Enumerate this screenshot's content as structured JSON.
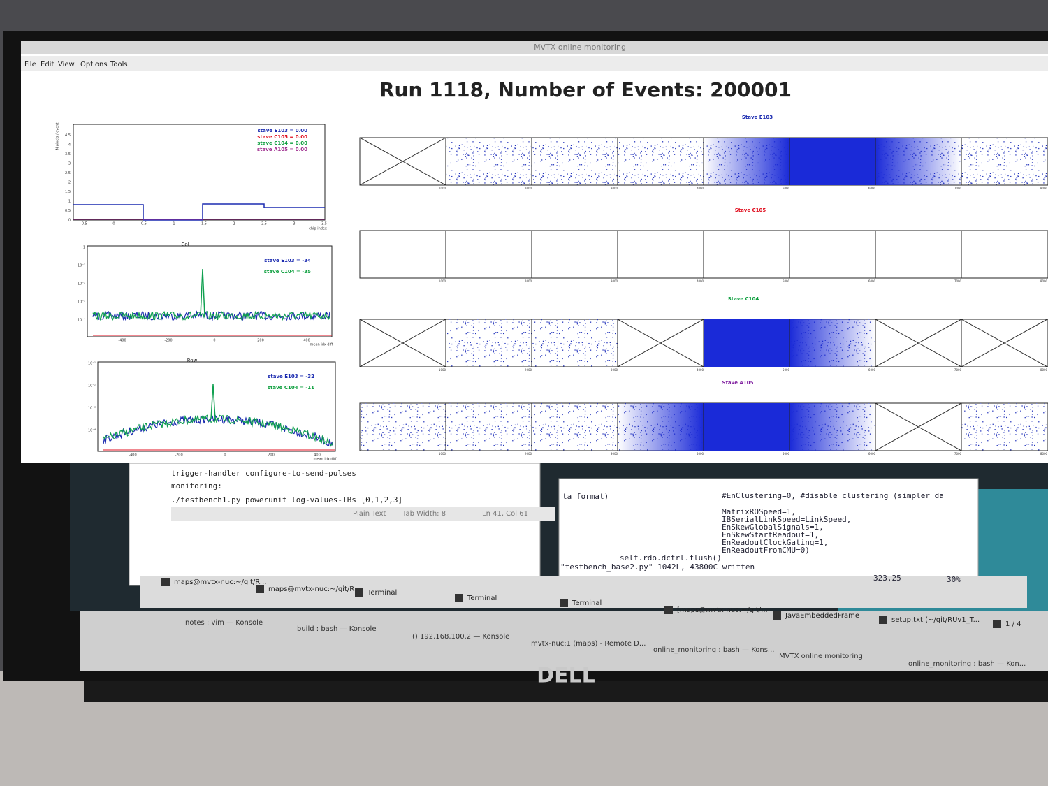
{
  "window": {
    "title": "MVTX online monitoring",
    "menu": [
      "File",
      "Edit",
      "View",
      "Options",
      "Tools"
    ]
  },
  "header": {
    "title": "Run 1118, Number of Events: 200001"
  },
  "plot1": {
    "y_label": "N pixels / event",
    "x_label": "chip index",
    "xticks": [
      "-0.5",
      "0",
      "0.5",
      "1",
      "1.5",
      "2",
      "2.5",
      "3",
      "3.5"
    ],
    "yticks": [
      "0",
      "0.5",
      "1",
      "1.5",
      "2",
      "2.5",
      "3",
      "3.5",
      "4",
      "4.5"
    ],
    "legend": [
      "stave E103 = 0.00",
      "stave C105 = 0.00",
      "stave C104 = 0.00",
      "stave A105 = 0.00"
    ]
  },
  "plot2": {
    "title": "Col",
    "x_label": "mean idx diff",
    "xticks": [
      "-400",
      "-200",
      "0",
      "200",
      "400"
    ],
    "yticks": [
      "1",
      "10⁻¹",
      "10⁻²",
      "10⁻³",
      "10⁻⁴"
    ],
    "legend": [
      "stave E103 = -34",
      "stave C104 = -35"
    ]
  },
  "plot3": {
    "title": "Row",
    "x_label": "mean idx diff",
    "xticks": [
      "-400",
      "-200",
      "0",
      "200",
      "400"
    ],
    "yticks": [
      "10⁻¹",
      "10⁻²",
      "10⁻³",
      "10⁻⁴"
    ],
    "legend": [
      "stave E103 = -32",
      "stave C104 = -11"
    ]
  },
  "staves": [
    {
      "title": "Stave E103"
    },
    {
      "title": "Stave C105"
    },
    {
      "title": "Stave C104"
    },
    {
      "title": "Stave A105"
    }
  ],
  "stave_xticks": [
    "1000",
    "2000",
    "3000",
    "4000",
    "5000",
    "6000",
    "7000",
    "8000"
  ],
  "editor": {
    "lines": [
      "trigger-handler configure-to-send-pulses",
      "monitoring:",
      "./testbench1.py powerunit log-values-IBs [0,1,2,3]"
    ],
    "status": [
      "Plain Text",
      "Tab Width: 8",
      "Ln 41, Col 61"
    ]
  },
  "vim": {
    "fragment": "ta format)",
    "lines": [
      "#EnClustering=0, #disable clustering (simpler da",
      "MatrixROSpeed=1,",
      "IBSerialLinkSpeed=LinkSpeed,",
      "EnSkewGlobalSignals=1,",
      "EnSkewStartReadout=1,",
      "EnReadoutClockGating=1,",
      "EnReadoutFromCMU=0)",
      "self.rdo.dctrl.flush()"
    ],
    "message": "\"testbench_base2.py\" 1042L, 43800C written",
    "position": "323,25",
    "percent": "30%"
  },
  "inner_taskbar": [
    "maps@mvtx-nuc:~/git/R...",
    "maps@mvtx-nuc:~/git/R...",
    "Terminal",
    "Terminal",
    "Terminal",
    "[maps@mvtx-nuc:~/git/...",
    "JavaEmbeddedFrame",
    "setup.txt (~/git/RUv1_T...",
    "1 / 4"
  ],
  "outer_taskbar": [
    "notes : vim — Konsole",
    "build : bash — Konsole",
    "() 192.168.100.2 — Konsole",
    "mvtx-nuc:1 (maps) - Remote D...",
    "online_monitoring : bash — Kons...",
    "MVTX online monitoring",
    "online_monitoring : bash — Kon..."
  ],
  "brand": "DELL"
}
